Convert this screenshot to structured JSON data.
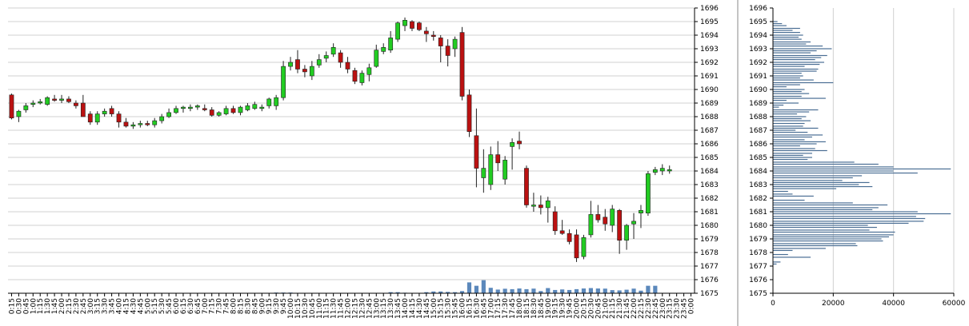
{
  "chart_data": [
    {
      "type": "candlestick",
      "yaxis": {
        "min": 1675,
        "max": 1696,
        "step": 1,
        "position": "right"
      },
      "grid": "horizontal",
      "colors": {
        "up": "#22cc22",
        "down": "#bb1111",
        "wick": "#222222",
        "volume": "#5b88bb",
        "grid": "#d0d0d0"
      },
      "x_labels": [
        "0:15",
        "0:30",
        "0:45",
        "1:00",
        "1:15",
        "1:30",
        "1:45",
        "2:00",
        "2:15",
        "2:30",
        "2:45",
        "3:00",
        "3:15",
        "3:30",
        "3:45",
        "4:00",
        "4:15",
        "4:30",
        "4:45",
        "5:00",
        "5:15",
        "5:30",
        "5:45",
        "6:00",
        "6:15",
        "6:30",
        "6:45",
        "7:00",
        "7:15",
        "7:30",
        "7:45",
        "8:00",
        "8:15",
        "8:30",
        "8:45",
        "9:00",
        "9:15",
        "9:30",
        "9:45",
        "10:00",
        "10:15",
        "10:30",
        "10:45",
        "11:00",
        "11:15",
        "11:30",
        "11:45",
        "12:00",
        "12:15",
        "12:30",
        "12:45",
        "13:00",
        "13:15",
        "13:30",
        "13:45",
        "14:00",
        "14:15",
        "14:30",
        "14:45",
        "15:00",
        "15:15",
        "15:30",
        "15:45",
        "16:00",
        "16:15",
        "16:30",
        "16:45",
        "17:00",
        "17:15",
        "17:30",
        "17:45",
        "18:00",
        "18:15",
        "18:30",
        "18:45",
        "19:00",
        "19:15",
        "19:30",
        "19:45",
        "20:00",
        "20:15",
        "20:30",
        "20:45",
        "21:00",
        "21:15",
        "21:30",
        "21:45",
        "22:00",
        "22:15",
        "22:30",
        "22:45",
        "23:00",
        "23:15",
        "23:30",
        "23:45",
        "0:00"
      ],
      "candles": [
        [
          1689.6,
          1689.7,
          1687.8,
          1687.9
        ],
        [
          1688.0,
          1688.5,
          1687.6,
          1688.4
        ],
        [
          1688.5,
          1689.0,
          1688.3,
          1688.8
        ],
        [
          1688.9,
          1689.2,
          1688.7,
          1689.0
        ],
        [
          1689.0,
          1689.3,
          1688.9,
          1689.1
        ],
        [
          1688.9,
          1689.5,
          1688.8,
          1689.4
        ],
        [
          1689.3,
          1689.6,
          1689.1,
          1689.2
        ],
        [
          1689.2,
          1689.6,
          1689.0,
          1689.3
        ],
        [
          1689.3,
          1689.5,
          1689.0,
          1689.1
        ],
        [
          1689.0,
          1689.2,
          1688.6,
          1688.8
        ],
        [
          1689.0,
          1689.6,
          1688.0,
          1688.0
        ],
        [
          1688.2,
          1688.4,
          1687.4,
          1687.6
        ],
        [
          1687.6,
          1688.4,
          1687.4,
          1688.2
        ],
        [
          1688.2,
          1688.6,
          1688.0,
          1688.4
        ],
        [
          1688.6,
          1688.8,
          1688.0,
          1688.2
        ],
        [
          1688.2,
          1688.4,
          1687.2,
          1687.6
        ],
        [
          1687.6,
          1687.9,
          1687.2,
          1687.3
        ],
        [
          1687.3,
          1687.6,
          1687.1,
          1687.4
        ],
        [
          1687.4,
          1687.7,
          1687.2,
          1687.5
        ],
        [
          1687.5,
          1687.7,
          1687.3,
          1687.4
        ],
        [
          1687.4,
          1687.9,
          1687.2,
          1687.7
        ],
        [
          1687.7,
          1688.2,
          1687.5,
          1688.0
        ],
        [
          1688.0,
          1688.6,
          1687.9,
          1688.3
        ],
        [
          1688.3,
          1688.8,
          1688.2,
          1688.6
        ],
        [
          1688.6,
          1688.8,
          1688.3,
          1688.7
        ],
        [
          1688.6,
          1688.9,
          1688.4,
          1688.7
        ],
        [
          1688.7,
          1688.9,
          1688.5,
          1688.8
        ],
        [
          1688.6,
          1688.9,
          1688.4,
          1688.5
        ],
        [
          1688.5,
          1688.7,
          1688.0,
          1688.1
        ],
        [
          1688.1,
          1688.4,
          1688.0,
          1688.3
        ],
        [
          1688.2,
          1688.8,
          1688.1,
          1688.6
        ],
        [
          1688.6,
          1688.8,
          1688.2,
          1688.3
        ],
        [
          1688.3,
          1688.8,
          1688.1,
          1688.7
        ],
        [
          1688.5,
          1689.0,
          1688.4,
          1688.8
        ],
        [
          1688.6,
          1689.1,
          1688.5,
          1688.9
        ],
        [
          1688.6,
          1688.9,
          1688.4,
          1688.7
        ],
        [
          1688.8,
          1689.4,
          1688.6,
          1689.3
        ],
        [
          1688.8,
          1689.6,
          1688.5,
          1689.4
        ],
        [
          1689.4,
          1692.1,
          1689.2,
          1691.7
        ],
        [
          1691.7,
          1692.4,
          1691.4,
          1692.0
        ],
        [
          1692.2,
          1692.9,
          1691.2,
          1691.5
        ],
        [
          1691.5,
          1691.8,
          1690.9,
          1691.3
        ],
        [
          1691.0,
          1692.1,
          1690.7,
          1691.7
        ],
        [
          1691.8,
          1692.6,
          1691.6,
          1692.2
        ],
        [
          1692.3,
          1692.8,
          1692.0,
          1692.5
        ],
        [
          1692.6,
          1693.4,
          1692.4,
          1693.1
        ],
        [
          1692.7,
          1692.9,
          1691.6,
          1692.0
        ],
        [
          1692.0,
          1692.4,
          1691.2,
          1691.5
        ],
        [
          1691.4,
          1691.6,
          1690.4,
          1690.6
        ],
        [
          1690.5,
          1691.4,
          1690.3,
          1691.2
        ],
        [
          1691.1,
          1691.9,
          1690.6,
          1691.6
        ],
        [
          1691.7,
          1693.3,
          1691.6,
          1692.9
        ],
        [
          1692.8,
          1693.4,
          1692.6,
          1693.1
        ],
        [
          1692.9,
          1694.3,
          1692.7,
          1693.8
        ],
        [
          1693.7,
          1695.0,
          1693.5,
          1694.9
        ],
        [
          1694.7,
          1695.3,
          1694.3,
          1695.1
        ],
        [
          1695.0,
          1695.1,
          1694.3,
          1694.5
        ],
        [
          1694.9,
          1695.0,
          1694.3,
          1694.4
        ],
        [
          1694.3,
          1694.6,
          1693.5,
          1694.1
        ],
        [
          1694.0,
          1694.3,
          1693.6,
          1693.9
        ],
        [
          1693.8,
          1694.0,
          1692.0,
          1693.2
        ],
        [
          1693.2,
          1693.7,
          1691.7,
          1692.5
        ],
        [
          1693.0,
          1693.9,
          1692.4,
          1693.7
        ],
        [
          1694.2,
          1694.6,
          1689.2,
          1689.5
        ],
        [
          1689.6,
          1690.0,
          1686.5,
          1686.9
        ],
        [
          1686.6,
          1688.6,
          1682.8,
          1684.2
        ],
        [
          1683.5,
          1685.6,
          1682.4,
          1684.2
        ],
        [
          1683.0,
          1685.8,
          1682.6,
          1685.2
        ],
        [
          1685.2,
          1686.2,
          1684.0,
          1684.6
        ],
        [
          1683.4,
          1685.1,
          1683.0,
          1684.8
        ],
        [
          1685.8,
          1686.4,
          1684.1,
          1686.1
        ],
        [
          1686.2,
          1686.9,
          1685.6,
          1686.0
        ],
        [
          1684.2,
          1684.4,
          1681.3,
          1681.5
        ],
        [
          1681.4,
          1682.4,
          1681.0,
          1681.5
        ],
        [
          1681.5,
          1682.2,
          1680.8,
          1681.3
        ],
        [
          1681.3,
          1682.1,
          1680.2,
          1681.8
        ],
        [
          1681.0,
          1681.4,
          1679.3,
          1679.6
        ],
        [
          1679.6,
          1680.4,
          1679.3,
          1679.4
        ],
        [
          1679.4,
          1679.7,
          1678.6,
          1678.8
        ],
        [
          1679.3,
          1679.7,
          1677.3,
          1677.6
        ],
        [
          1677.7,
          1679.3,
          1677.5,
          1679.1
        ],
        [
          1679.3,
          1681.8,
          1679.1,
          1680.8
        ],
        [
          1680.8,
          1681.5,
          1680.2,
          1680.4
        ],
        [
          1680.6,
          1681.2,
          1679.6,
          1680.1
        ],
        [
          1680.0,
          1681.5,
          1679.5,
          1681.2
        ],
        [
          1681.1,
          1681.2,
          1677.9,
          1678.9
        ],
        [
          1678.9,
          1680.1,
          1678.2,
          1680.0
        ],
        [
          1680.1,
          1680.9,
          1679.0,
          1680.3
        ],
        [
          1680.9,
          1681.5,
          1679.8,
          1681.1
        ],
        [
          1680.9,
          1684.0,
          1680.7,
          1683.8
        ],
        [
          1683.9,
          1684.3,
          1683.7,
          1684.1
        ],
        [
          1684.0,
          1684.5,
          1683.7,
          1684.2
        ],
        [
          1684.0,
          1684.4,
          1683.8,
          1684.1
        ]
      ],
      "volume_levels": [
        0,
        0,
        0,
        0,
        0,
        0,
        0,
        0,
        0,
        0,
        0,
        0,
        0,
        0,
        0,
        0,
        0,
        0,
        0,
        0,
        0,
        0,
        0,
        0,
        0,
        0,
        0,
        0,
        0,
        0,
        0,
        0,
        0,
        0,
        0,
        0,
        0,
        0.5,
        0.5,
        0.5,
        0,
        0,
        0,
        0,
        0,
        0,
        0,
        0,
        0,
        0,
        0,
        0,
        0,
        0.8,
        0.8,
        0.4,
        0,
        0,
        0.8,
        1.3,
        1.3,
        1.0,
        0.8,
        1.6,
        8.0,
        5.5,
        9.6,
        4.0,
        2.7,
        3.3,
        3.0,
        3.5,
        3.0,
        3.4,
        1.6,
        3.8,
        2.4,
        2.8,
        2.4,
        3.0,
        3.5,
        3.8,
        3.5,
        3.4,
        2.3,
        2.1,
        2.6,
        3.4,
        1.9,
        5.5,
        5.5,
        0,
        0,
        0,
        0,
        0
      ]
    },
    {
      "type": "bar-horizontal",
      "yaxis": {
        "min": 1675,
        "max": 1696,
        "step": 1,
        "position": "left"
      },
      "xaxis": {
        "min": 0,
        "max": 60000,
        "ticks": [
          0,
          20000,
          40000,
          60000
        ],
        "labels": [
          "0",
          "20000",
          "40000",
          "60000"
        ]
      },
      "grid": "vertical",
      "colors": {
        "bar": "#4a6e94",
        "grid": "#d0d0d0"
      },
      "bars": [
        [
          1677.15,
          1200
        ],
        [
          1677.3,
          2500
        ],
        [
          1677.65,
          12500
        ],
        [
          1677.85,
          5000
        ],
        [
          1678.15,
          6500
        ],
        [
          1678.3,
          17500
        ],
        [
          1678.5,
          28000
        ],
        [
          1678.65,
          27500
        ],
        [
          1678.85,
          36500
        ],
        [
          1679.0,
          36000
        ],
        [
          1679.15,
          38500
        ],
        [
          1679.3,
          40000
        ],
        [
          1679.5,
          40500
        ],
        [
          1679.65,
          32000
        ],
        [
          1679.85,
          34500
        ],
        [
          1680.0,
          31500
        ],
        [
          1680.15,
          45000
        ],
        [
          1680.3,
          50000
        ],
        [
          1680.5,
          50500
        ],
        [
          1680.65,
          47500
        ],
        [
          1680.85,
          59000
        ],
        [
          1681.0,
          48000
        ],
        [
          1681.15,
          33000
        ],
        [
          1681.3,
          35000
        ],
        [
          1681.5,
          38000
        ],
        [
          1681.65,
          26500
        ],
        [
          1681.85,
          10500
        ],
        [
          1682.15,
          13500
        ],
        [
          1682.3,
          6500
        ],
        [
          1682.5,
          5000
        ],
        [
          1682.7,
          21000
        ],
        [
          1682.85,
          33000
        ],
        [
          1683.0,
          28500
        ],
        [
          1683.15,
          32000
        ],
        [
          1683.3,
          23000
        ],
        [
          1683.5,
          26500
        ],
        [
          1683.65,
          29500
        ],
        [
          1683.85,
          48000
        ],
        [
          1684.0,
          40000
        ],
        [
          1684.15,
          59000
        ],
        [
          1684.3,
          40000
        ],
        [
          1684.5,
          35000
        ],
        [
          1684.65,
          27000
        ],
        [
          1684.85,
          11500
        ],
        [
          1685.0,
          13000
        ],
        [
          1685.15,
          10000
        ],
        [
          1685.3,
          13000
        ],
        [
          1685.5,
          18000
        ],
        [
          1685.65,
          14000
        ],
        [
          1685.85,
          9000
        ],
        [
          1686.0,
          14500
        ],
        [
          1686.15,
          17500
        ],
        [
          1686.3,
          10500
        ],
        [
          1686.5,
          13000
        ],
        [
          1686.65,
          16500
        ],
        [
          1686.85,
          11500
        ],
        [
          1687.0,
          7500
        ],
        [
          1687.15,
          15000
        ],
        [
          1687.3,
          10000
        ],
        [
          1687.5,
          10500
        ],
        [
          1687.7,
          12500
        ],
        [
          1687.85,
          9500
        ],
        [
          1688.0,
          11000
        ],
        [
          1688.2,
          8000
        ],
        [
          1688.35,
          12000
        ],
        [
          1688.5,
          15000
        ],
        [
          1688.7,
          2000
        ],
        [
          1688.85,
          3500
        ],
        [
          1689.0,
          8500
        ],
        [
          1689.2,
          4500
        ],
        [
          1689.35,
          17500
        ],
        [
          1689.5,
          9500
        ],
        [
          1689.7,
          12000
        ],
        [
          1689.85,
          9500
        ],
        [
          1690.0,
          10500
        ],
        [
          1690.2,
          4500
        ],
        [
          1690.35,
          9000
        ],
        [
          1690.5,
          20000
        ],
        [
          1690.7,
          13500
        ],
        [
          1690.85,
          9000
        ],
        [
          1691.0,
          10000
        ],
        [
          1691.2,
          9500
        ],
        [
          1691.35,
          14500
        ],
        [
          1691.5,
          15000
        ],
        [
          1691.7,
          10500
        ],
        [
          1691.85,
          15500
        ],
        [
          1692.0,
          17000
        ],
        [
          1692.2,
          14000
        ],
        [
          1692.35,
          16000
        ],
        [
          1692.5,
          18000
        ],
        [
          1692.7,
          12500
        ],
        [
          1692.85,
          14500
        ],
        [
          1693.0,
          19500
        ],
        [
          1693.2,
          16500
        ],
        [
          1693.35,
          11000
        ],
        [
          1693.5,
          12500
        ],
        [
          1693.7,
          9500
        ],
        [
          1693.85,
          8500
        ],
        [
          1694.0,
          10000
        ],
        [
          1694.2,
          9000
        ],
        [
          1694.35,
          6500
        ],
        [
          1694.5,
          9000
        ],
        [
          1694.7,
          4500
        ],
        [
          1694.85,
          3000
        ],
        [
          1695.0,
          1500
        ]
      ]
    }
  ]
}
